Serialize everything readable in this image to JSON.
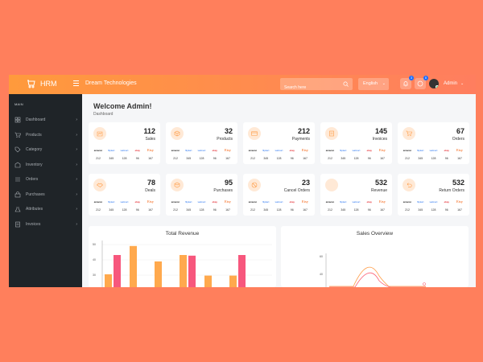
{
  "header": {
    "app_name": "HRM",
    "company": "Dream Technologies",
    "search_placeholder": "Search here",
    "language": "English",
    "notif_badge": "3",
    "msg_badge": "8",
    "user": "Admin",
    "accent_from": "#ff9a3c",
    "accent_to": "#ff7e5f"
  },
  "sidebar": {
    "section": "MAIN",
    "items": [
      {
        "label": "Dashboard",
        "icon": "dashboard-icon"
      },
      {
        "label": "Products",
        "icon": "cart-icon"
      },
      {
        "label": "Category",
        "icon": "tag-icon"
      },
      {
        "label": "Inventory",
        "icon": "inventory-icon"
      },
      {
        "label": "Orders",
        "icon": "list-icon"
      },
      {
        "label": "Purchases",
        "icon": "bag-icon"
      },
      {
        "label": "Attributes",
        "icon": "flask-icon"
      },
      {
        "label": "Invoices",
        "icon": "invoice-icon"
      }
    ]
  },
  "page": {
    "title": "Welcome Admin!",
    "breadcrumb": "Dashboard"
  },
  "brands": [
    "amazon",
    "amazon",
    "flipkart",
    "walmart",
    "ebay",
    "Etsy"
  ],
  "cards": [
    {
      "num": "112",
      "label": "Sales",
      "icon": "sales-icon",
      "vals": [
        "212",
        "345",
        "128",
        "96",
        "167"
      ]
    },
    {
      "num": "32",
      "label": "Products",
      "icon": "package-icon",
      "vals": [
        "212",
        "345",
        "128",
        "96",
        "167"
      ]
    },
    {
      "num": "212",
      "label": "Payments",
      "icon": "credit-card-icon",
      "vals": [
        "212",
        "345",
        "128",
        "96",
        "167"
      ]
    },
    {
      "num": "145",
      "label": "Invoices",
      "icon": "invoice-icon",
      "vals": [
        "212",
        "345",
        "128",
        "96",
        "167"
      ]
    },
    {
      "num": "67",
      "label": "Orders",
      "icon": "cart-icon",
      "vals": [
        "212",
        "345",
        "128",
        "96",
        "167"
      ]
    },
    {
      "num": "78",
      "label": "Deals",
      "icon": "handshake-icon",
      "vals": [
        "212",
        "345",
        "128",
        "96",
        "167"
      ]
    },
    {
      "num": "95",
      "label": "Purchases",
      "icon": "box-icon",
      "vals": [
        "212",
        "345",
        "128",
        "96",
        "167"
      ]
    },
    {
      "num": "23",
      "label": "Cancel Orders",
      "icon": "ban-icon",
      "vals": [
        "212",
        "345",
        "128",
        "96",
        "167"
      ]
    },
    {
      "num": "532",
      "label": "Revenue",
      "icon": "dollar-icon",
      "vals": [
        "212",
        "345",
        "128",
        "96",
        "167"
      ]
    },
    {
      "num": "532",
      "label": "Return Orders",
      "icon": "return-icon",
      "vals": [
        "212",
        "345",
        "128",
        "96",
        "167"
      ]
    }
  ],
  "panels": {
    "revenue_title": "Total Revenue",
    "sales_title": "Sales Overview"
  },
  "chart_data": [
    {
      "type": "bar",
      "title": "Total Revenue",
      "y_ticks": [
        "50",
        "40",
        "30"
      ],
      "ylim": [
        0,
        70
      ],
      "series": [
        {
          "color": "#ffa94d",
          "values": [
            20,
            64,
            40,
            50,
            18,
            18
          ]
        },
        {
          "color": "#f7577d",
          "values": [
            50,
            0,
            0,
            49,
            0,
            50
          ]
        }
      ]
    },
    {
      "type": "line",
      "title": "Sales Overview",
      "y_ticks": [
        "60",
        "40"
      ],
      "series": [
        {
          "color": "#ff9b44"
        },
        {
          "color": "#fc6075"
        }
      ]
    }
  ]
}
